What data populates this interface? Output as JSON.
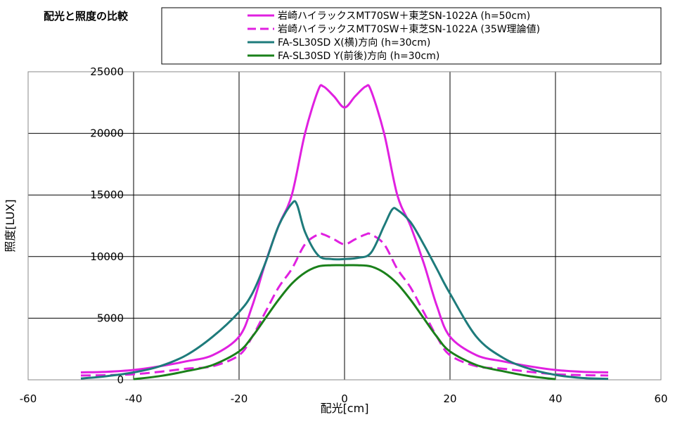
{
  "chart_data": {
    "type": "line",
    "title": "配光と照度の比較",
    "xlabel": "配光[cm]",
    "ylabel": "照度[LUX]",
    "xlim": [
      -60,
      60
    ],
    "ylim": [
      0,
      25000
    ],
    "xticks": [
      -60,
      -40,
      -20,
      0,
      20,
      40,
      60
    ],
    "yticks": [
      0,
      5000,
      10000,
      15000,
      20000,
      25000
    ],
    "grid": true,
    "legend_position": "top",
    "series": [
      {
        "name": "岩崎ハイラックスMT70SW＋東芝SN-1022A (h=50cm)",
        "color": "#e020e0",
        "dash": "solid",
        "x": [
          -50,
          -45,
          -40,
          -35,
          -30,
          -25,
          -20,
          -17.5,
          -15,
          -12.5,
          -10,
          -7.5,
          -5,
          -4,
          -2,
          0,
          2,
          4,
          5,
          7.5,
          10,
          12.5,
          15,
          17.5,
          20,
          25,
          30,
          35,
          40,
          45,
          50
        ],
        "y": [
          600,
          650,
          800,
          1100,
          1500,
          2000,
          3500,
          6000,
          9500,
          12500,
          15000,
          20000,
          23500,
          23800,
          23000,
          22100,
          23000,
          23800,
          23500,
          20000,
          15000,
          12500,
          9500,
          6000,
          3500,
          2000,
          1500,
          1100,
          800,
          650,
          600
        ]
      },
      {
        "name": "岩崎ハイラックスMT70SW＋東芝SN-1022A (35W理論値)",
        "color": "#e020e0",
        "dash": "dashed",
        "x": [
          -50,
          -45,
          -40,
          -35,
          -30,
          -25,
          -20,
          -17.5,
          -15,
          -12.5,
          -10,
          -7.5,
          -5,
          -4,
          -2,
          0,
          2,
          4,
          5,
          7.5,
          10,
          12.5,
          15,
          17.5,
          20,
          25,
          30,
          35,
          40,
          45,
          50
        ],
        "y": [
          350,
          380,
          450,
          650,
          900,
          1100,
          2000,
          3500,
          5500,
          7500,
          9000,
          11000,
          11800,
          11800,
          11400,
          11000,
          11400,
          11800,
          11800,
          11000,
          9000,
          7500,
          5500,
          3500,
          2000,
          1100,
          900,
          650,
          450,
          380,
          350
        ]
      },
      {
        "name": "FA-SL30SD X(横)方向 (h=30cm)",
        "color": "#1e7b7b",
        "dash": "solid",
        "x": [
          -50,
          -45,
          -40,
          -35,
          -30,
          -25,
          -20,
          -17.5,
          -15,
          -12.5,
          -10,
          -9,
          -7.5,
          -5,
          -2.5,
          0,
          2.5,
          5,
          7.5,
          9,
          10,
          12.5,
          15,
          17.5,
          20,
          25,
          30,
          35,
          40,
          45,
          50
        ],
        "y": [
          100,
          300,
          600,
          1100,
          2000,
          3500,
          5500,
          7000,
          9500,
          12500,
          14300,
          14200,
          12000,
          10100,
          9800,
          9800,
          9900,
          10300,
          12500,
          13800,
          13800,
          12800,
          11000,
          9000,
          7000,
          3500,
          1800,
          900,
          400,
          150,
          80
        ]
      },
      {
        "name": "FA-SL30SD Y(前後)方向 (h=30cm)",
        "color": "#1a801a",
        "dash": "solid",
        "x": [
          -40,
          -35,
          -30,
          -25,
          -20,
          -17.5,
          -15,
          -12.5,
          -10,
          -7.5,
          -5,
          -2.5,
          0,
          2.5,
          5,
          7.5,
          10,
          12.5,
          15,
          17.5,
          20,
          25,
          30,
          35,
          40
        ],
        "y": [
          50,
          300,
          700,
          1200,
          2300,
          3500,
          5000,
          6500,
          7800,
          8700,
          9200,
          9300,
          9300,
          9300,
          9200,
          8700,
          7800,
          6500,
          5000,
          3500,
          2300,
          1200,
          700,
          300,
          50
        ]
      }
    ]
  }
}
